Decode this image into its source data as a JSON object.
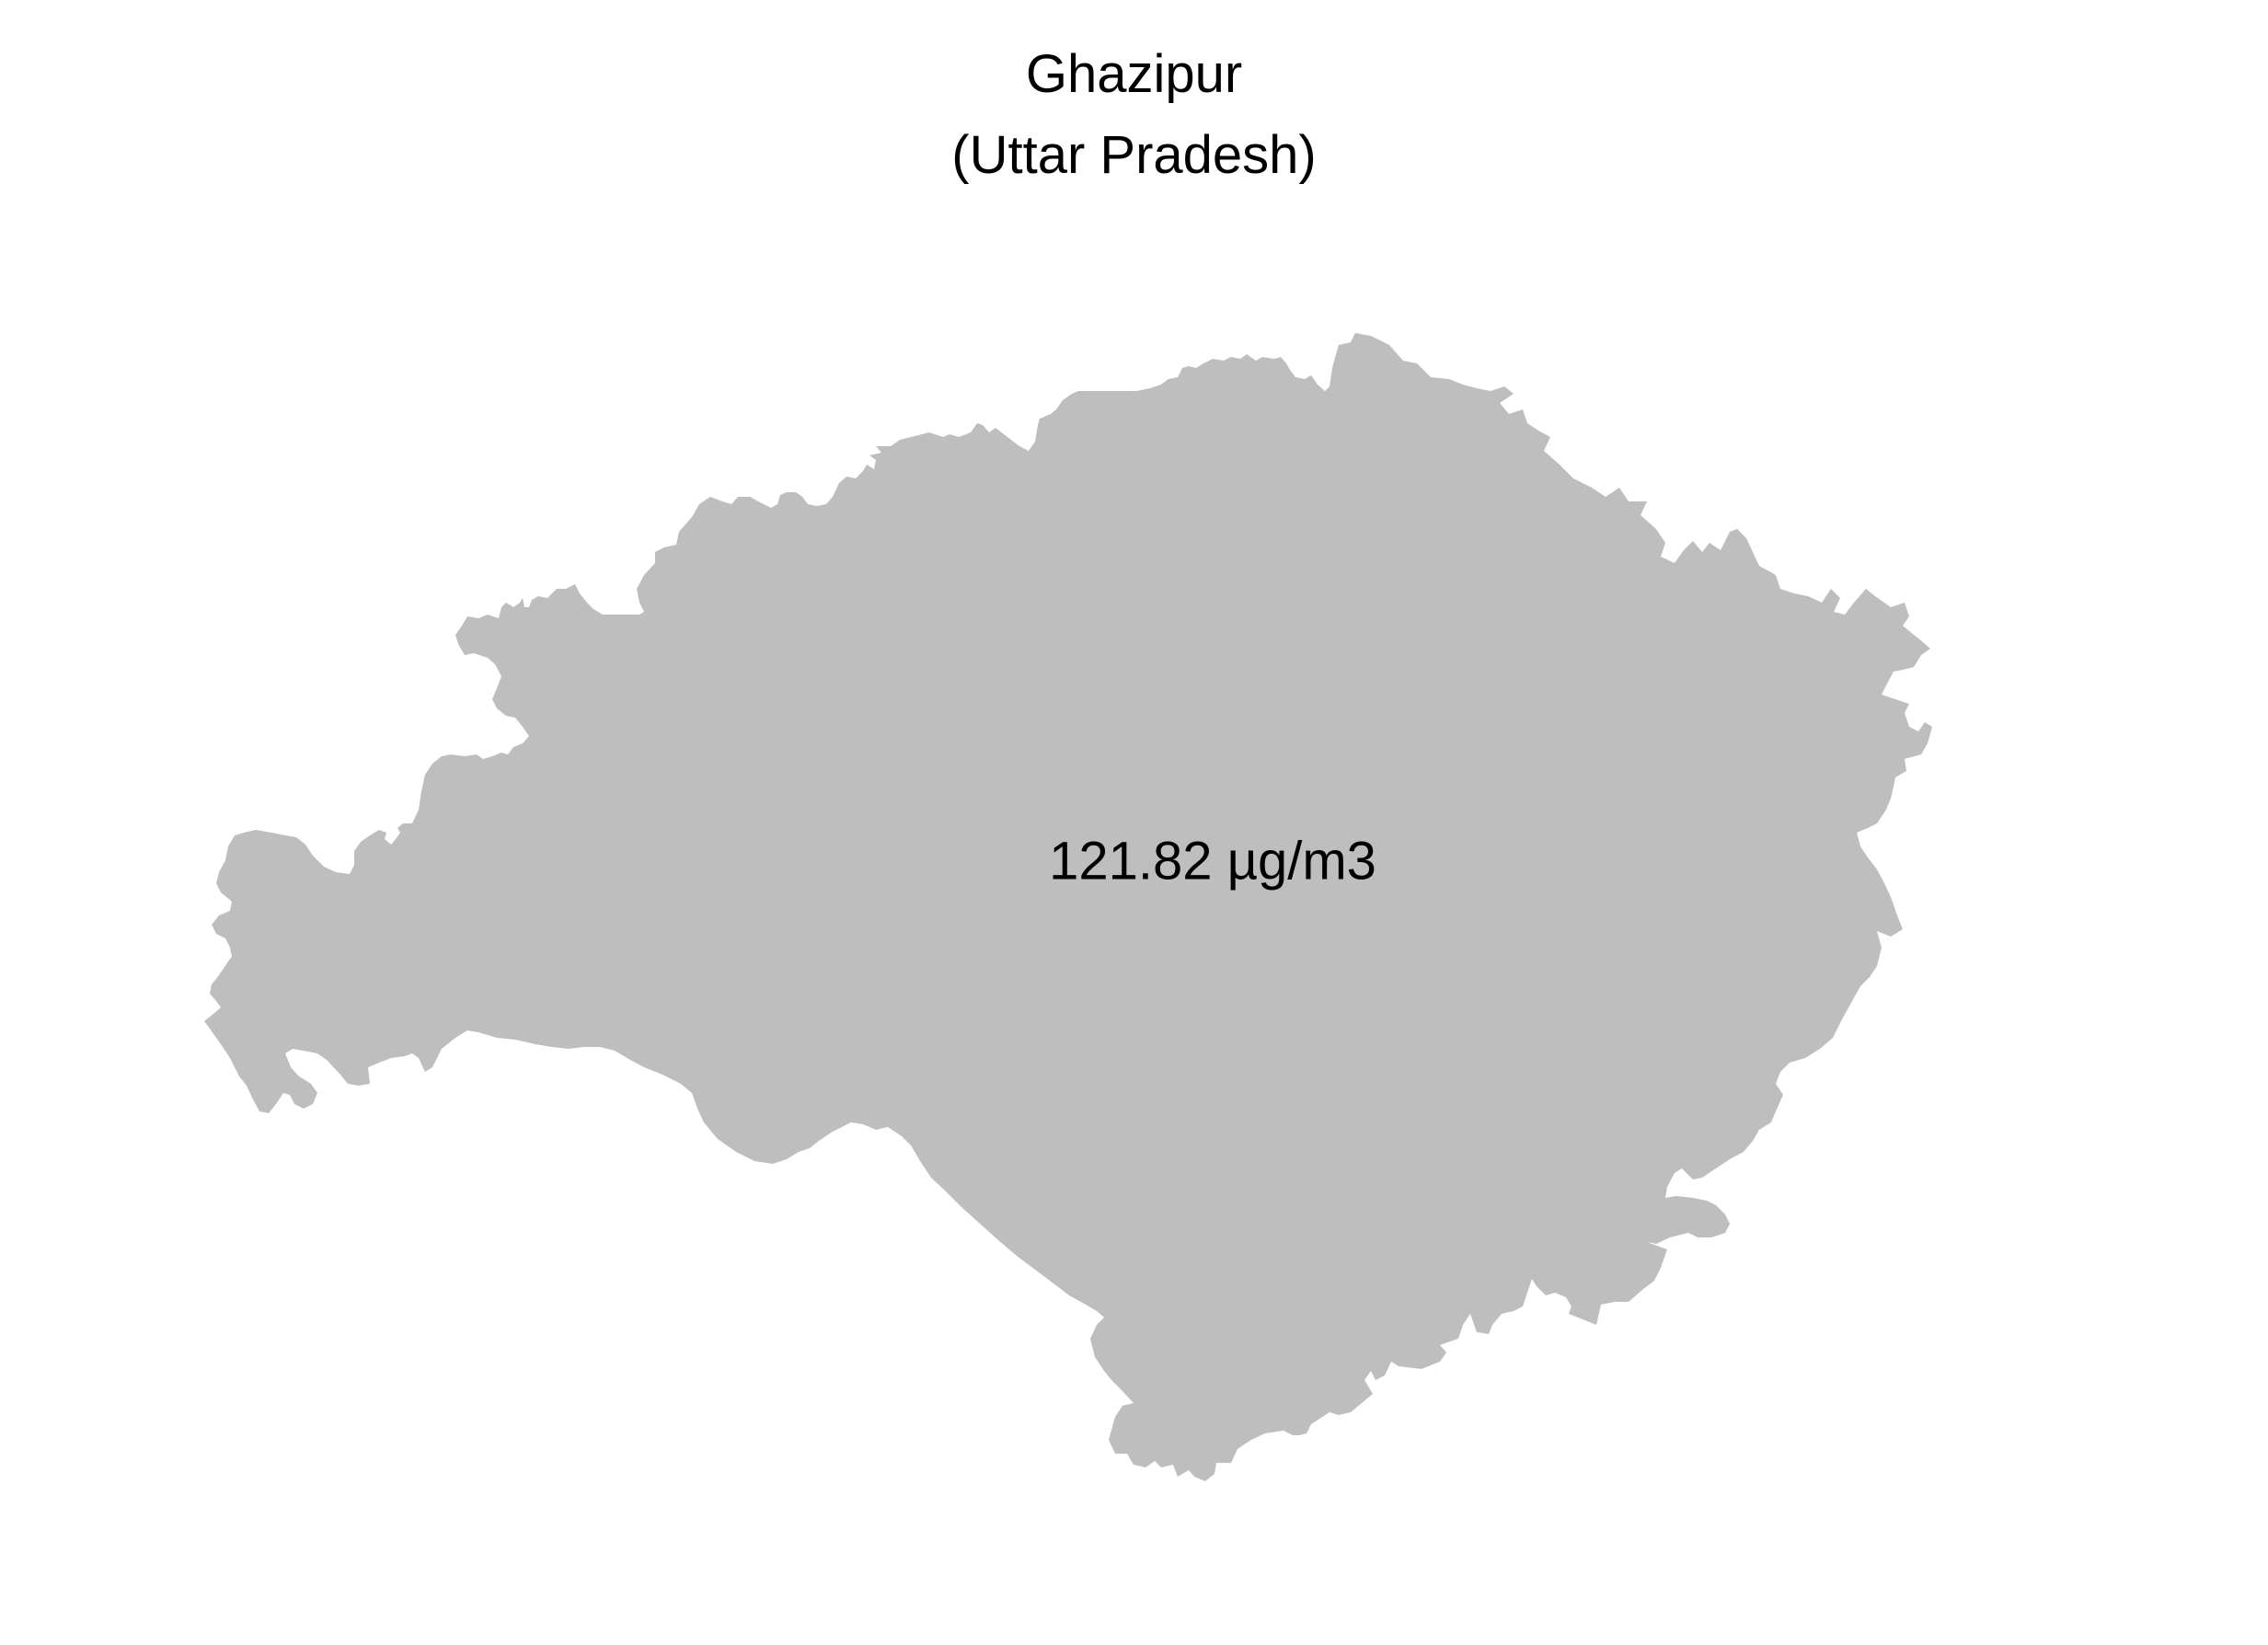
{
  "map": {
    "title": "Ghazipur",
    "subtitle": "(Uttar Pradesh)",
    "region_fill": "#bebebe",
    "background": "#ffffff",
    "value_label": "121.82 µg/m3"
  }
}
